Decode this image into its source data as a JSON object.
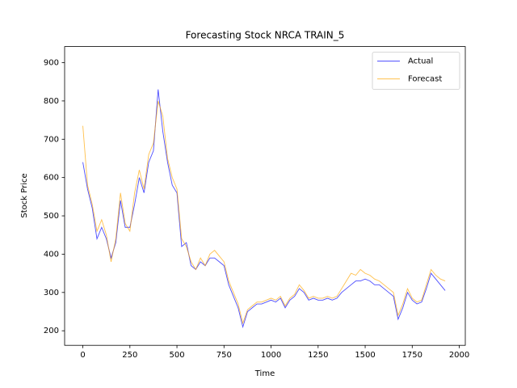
{
  "chart_data": {
    "type": "line",
    "title": "Forecasting Stock NRCA TRAIN_5",
    "x_label": "Time",
    "y_label": "Stock Price",
    "x": [
      0,
      25,
      50,
      75,
      100,
      125,
      150,
      175,
      200,
      225,
      250,
      275,
      300,
      325,
      350,
      375,
      400,
      425,
      450,
      475,
      500,
      525,
      550,
      575,
      600,
      625,
      650,
      675,
      700,
      725,
      750,
      775,
      800,
      825,
      850,
      875,
      900,
      925,
      950,
      975,
      1000,
      1025,
      1050,
      1075,
      1100,
      1125,
      1150,
      1175,
      1200,
      1225,
      1250,
      1275,
      1300,
      1325,
      1350,
      1375,
      1400,
      1425,
      1450,
      1475,
      1500,
      1525,
      1550,
      1575,
      1600,
      1625,
      1650,
      1675,
      1700,
      1725,
      1750,
      1775,
      1800,
      1825,
      1850,
      1875,
      1900,
      1925
    ],
    "series": [
      {
        "name": "Actual",
        "color": "#0000ff",
        "values": [
          640,
          570,
          520,
          440,
          470,
          440,
          390,
          430,
          540,
          470,
          470,
          530,
          600,
          560,
          640,
          670,
          830,
          720,
          640,
          580,
          560,
          420,
          430,
          370,
          360,
          380,
          370,
          390,
          390,
          380,
          370,
          320,
          290,
          260,
          210,
          250,
          260,
          270,
          270,
          275,
          280,
          275,
          285,
          260,
          280,
          290,
          310,
          300,
          280,
          285,
          280,
          280,
          285,
          280,
          285,
          300,
          310,
          320,
          330,
          330,
          335,
          330,
          320,
          320,
          310,
          300,
          290,
          230,
          260,
          300,
          280,
          270,
          275,
          310,
          350,
          335,
          320,
          305
        ]
      },
      {
        "name": "Forecast",
        "color": "#ffa500",
        "values": [
          735,
          580,
          530,
          460,
          490,
          450,
          380,
          440,
          560,
          480,
          460,
          560,
          620,
          570,
          660,
          690,
          800,
          760,
          650,
          600,
          570,
          440,
          420,
          380,
          360,
          390,
          370,
          400,
          410,
          395,
          380,
          330,
          300,
          270,
          220,
          255,
          265,
          275,
          275,
          280,
          285,
          280,
          290,
          265,
          285,
          295,
          320,
          305,
          285,
          290,
          285,
          285,
          290,
          285,
          290,
          310,
          330,
          350,
          345,
          360,
          350,
          345,
          335,
          330,
          320,
          310,
          300,
          240,
          270,
          310,
          285,
          275,
          280,
          320,
          360,
          345,
          335,
          330
        ]
      }
    ],
    "xlim": [
      -96.8,
      2032
    ],
    "ylim": [
      162,
      942
    ],
    "xticks": [
      0,
      250,
      500,
      750,
      1000,
      1250,
      1500,
      1750,
      2000
    ],
    "yticks": [
      200,
      300,
      400,
      500,
      600,
      700,
      800,
      900
    ],
    "legend": "upper right"
  }
}
